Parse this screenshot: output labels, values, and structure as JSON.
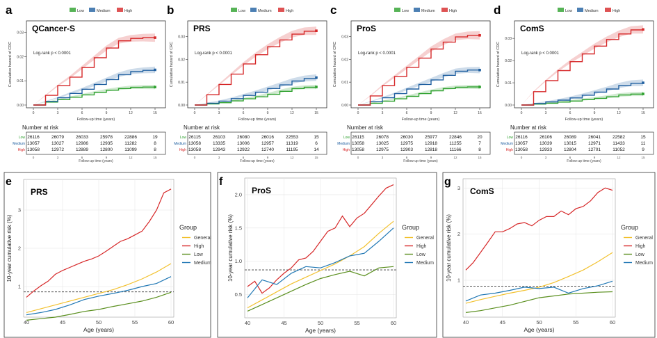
{
  "legend_top": {
    "low": "Low",
    "medium": "Medium",
    "high": "High"
  },
  "colors": {
    "low": "#2ca02c",
    "medium": "#1f5fa0",
    "high": "#d62728",
    "general": "#f2c12e",
    "green2": "#5a8f1e",
    "blue2": "#1f77b4",
    "ref": "#333333"
  },
  "risk_table": {
    "header": "Number at risk",
    "row_labels": [
      "Low",
      "Medium",
      "High"
    ],
    "xlabel": "Follow-up time (years)",
    "ticks": [
      "0",
      "3",
      "6",
      "9",
      "12",
      "15"
    ]
  },
  "chart_data": [
    {
      "panel": "a",
      "type": "line",
      "title": "QCancer-S",
      "annotation": "Log-rank  p < 0.0001",
      "xlabel": "Follow-up time (years)",
      "ylabel": "Cumulative hazard of CRC",
      "xticks": [
        0,
        3,
        6,
        9,
        12,
        15
      ],
      "yticks": [
        0.0,
        0.01,
        0.02,
        0.03
      ],
      "ylim": [
        0,
        0.033
      ],
      "series": [
        {
          "name": "Low",
          "x": [
            0,
            1.5,
            3,
            4.5,
            6,
            7.5,
            9,
            10.5,
            12,
            13.5,
            15
          ],
          "y": [
            0,
            0.0012,
            0.0022,
            0.0032,
            0.0042,
            0.0052,
            0.0061,
            0.0068,
            0.0073,
            0.0074,
            0.0074
          ]
        },
        {
          "name": "Medium",
          "x": [
            0,
            1.5,
            3,
            4.5,
            6,
            7.5,
            9,
            10.5,
            12,
            13.5,
            15
          ],
          "y": [
            0,
            0.0015,
            0.003,
            0.0048,
            0.0065,
            0.0085,
            0.0105,
            0.0125,
            0.0138,
            0.0143,
            0.0145
          ]
        },
        {
          "name": "High",
          "x": [
            0,
            1.5,
            3,
            4.5,
            6,
            7.5,
            9,
            10.5,
            12,
            13.5,
            15
          ],
          "y": [
            0,
            0.004,
            0.008,
            0.0115,
            0.0155,
            0.0195,
            0.0235,
            0.0265,
            0.0275,
            0.0278,
            0.0278
          ]
        }
      ],
      "risk_table": [
        [
          26116,
          26079,
          26033,
          25978,
          22886,
          19
        ],
        [
          13057,
          13027,
          12986,
          12935,
          11282,
          8
        ],
        [
          13058,
          12972,
          12889,
          12800,
          11099,
          8
        ]
      ]
    },
    {
      "panel": "b",
      "type": "line",
      "title": "PRS",
      "annotation": "Log-rank  p < 0.0001",
      "xlabel": "Follow-up time (years)",
      "ylabel": "Cumulative hazard of CRC",
      "xticks": [
        0,
        3,
        6,
        9,
        12,
        15
      ],
      "yticks": [
        0.0,
        0.01,
        0.02,
        0.03
      ],
      "ylim": [
        0,
        0.035
      ],
      "series": [
        {
          "name": "Low",
          "x": [
            0,
            1.5,
            3,
            4.5,
            6,
            7.5,
            9,
            10.5,
            12,
            13.5,
            15
          ],
          "y": [
            0,
            0.0005,
            0.001,
            0.0018,
            0.0027,
            0.0036,
            0.0047,
            0.006,
            0.0072,
            0.0078,
            0.0079
          ]
        },
        {
          "name": "Medium",
          "x": [
            0,
            1.5,
            3,
            4.5,
            6,
            7.5,
            9,
            10.5,
            12,
            13.5,
            15
          ],
          "y": [
            0,
            0.0008,
            0.0017,
            0.0028,
            0.0042,
            0.0056,
            0.0072,
            0.0088,
            0.0105,
            0.0116,
            0.012
          ]
        },
        {
          "name": "High",
          "x": [
            0,
            1.5,
            3,
            4.5,
            6,
            7.5,
            9,
            10.5,
            12,
            13.5,
            15
          ],
          "y": [
            0,
            0.0045,
            0.009,
            0.0135,
            0.018,
            0.022,
            0.0255,
            0.0285,
            0.031,
            0.0323,
            0.0325
          ]
        }
      ],
      "risk_table": [
        [
          26115,
          26103,
          26080,
          26016,
          22553,
          15
        ],
        [
          13058,
          13335,
          13006,
          12957,
          11319,
          6
        ],
        [
          13058,
          12943,
          12922,
          12740,
          11195,
          14
        ]
      ]
    },
    {
      "panel": "c",
      "type": "line",
      "title": "ProS",
      "annotation": "Log-rank  p < 0.0001",
      "xlabel": "Follow-up time (years)",
      "ylabel": "Cumulative hazard of CRC",
      "xticks": [
        0,
        3,
        6,
        9,
        12,
        15
      ],
      "yticks": [
        0.0,
        0.01,
        0.02,
        0.03
      ],
      "ylim": [
        0,
        0.035
      ],
      "series": [
        {
          "name": "Low",
          "x": [
            0,
            1.5,
            3,
            4.5,
            6,
            7.5,
            9,
            10.5,
            12,
            13.5,
            15
          ],
          "y": [
            0,
            0.0008,
            0.0017,
            0.0027,
            0.0038,
            0.005,
            0.0062,
            0.0072,
            0.0078,
            0.0079,
            0.0079
          ]
        },
        {
          "name": "Medium",
          "x": [
            0,
            1.5,
            3,
            4.5,
            6,
            7.5,
            9,
            10.5,
            12,
            13.5,
            15
          ],
          "y": [
            0,
            0.0015,
            0.0032,
            0.005,
            0.007,
            0.009,
            0.011,
            0.013,
            0.0148,
            0.0153,
            0.0153
          ]
        },
        {
          "name": "High",
          "x": [
            0,
            1.5,
            3,
            4.5,
            6,
            7.5,
            9,
            10.5,
            12,
            13.5,
            15
          ],
          "y": [
            0,
            0.004,
            0.0085,
            0.0125,
            0.0165,
            0.0205,
            0.0245,
            0.0275,
            0.0298,
            0.0305,
            0.0305
          ]
        }
      ],
      "risk_table": [
        [
          26115,
          26078,
          26030,
          25977,
          22846,
          20
        ],
        [
          13058,
          13025,
          12975,
          12918,
          11255,
          7
        ],
        [
          13058,
          12975,
          12903,
          12818,
          11166,
          8
        ]
      ]
    },
    {
      "panel": "d",
      "type": "line",
      "title": "ComS",
      "annotation": "Log-rank  p < 0.0001",
      "xlabel": "Follow-up time (years)",
      "ylabel": "Cumulative hazard of CRC",
      "xticks": [
        0,
        3,
        6,
        9,
        12,
        15
      ],
      "yticks": [
        0.0,
        0.01,
        0.02,
        0.03
      ],
      "ylim": [
        0,
        0.036
      ],
      "series": [
        {
          "name": "Low",
          "x": [
            0,
            1.5,
            3,
            4.5,
            6,
            7.5,
            9,
            10.5,
            12,
            13.5,
            15
          ],
          "y": [
            0,
            0.0004,
            0.0008,
            0.0013,
            0.0018,
            0.0024,
            0.003,
            0.0037,
            0.0045,
            0.0049,
            0.005
          ]
        },
        {
          "name": "Medium",
          "x": [
            0,
            1.5,
            3,
            4.5,
            6,
            7.5,
            9,
            10.5,
            12,
            13.5,
            15
          ],
          "y": [
            0,
            0.0007,
            0.0014,
            0.0022,
            0.0032,
            0.0044,
            0.0058,
            0.0072,
            0.0088,
            0.0098,
            0.01
          ]
        },
        {
          "name": "High",
          "x": [
            0,
            1.5,
            3,
            4.5,
            6,
            7.5,
            9,
            10.5,
            12,
            13.5,
            15
          ],
          "y": [
            0,
            0.006,
            0.011,
            0.0155,
            0.0195,
            0.023,
            0.0265,
            0.0295,
            0.032,
            0.0338,
            0.034
          ]
        }
      ],
      "risk_table": [
        [
          26116,
          26106,
          26089,
          26041,
          22582,
          15
        ],
        [
          13057,
          13039,
          13015,
          12971,
          11433,
          11
        ],
        [
          13058,
          12933,
          12804,
          12701,
          11052,
          9
        ]
      ]
    },
    {
      "panel": "e",
      "type": "line",
      "title": "PRS",
      "xlabel": "Age (years)",
      "ylabel": "10-year cumulative risk (%)",
      "xticks": [
        40,
        45,
        50,
        55,
        60
      ],
      "yticks": [
        1,
        2,
        3
      ],
      "ylim": [
        0.2,
        3.8
      ],
      "ref_line": 0.86,
      "legend_title": "Group",
      "series": [
        {
          "name": "General",
          "x": [
            40,
            42,
            44,
            46,
            48,
            50,
            52,
            54,
            56,
            58,
            60
          ],
          "y": [
            0.32,
            0.42,
            0.52,
            0.62,
            0.72,
            0.82,
            0.92,
            1.05,
            1.2,
            1.38,
            1.6
          ]
        },
        {
          "name": "High",
          "x": [
            40,
            41,
            42,
            43,
            44,
            45,
            46,
            47,
            48,
            49,
            50,
            51,
            52,
            53,
            54,
            55,
            56,
            57,
            58,
            59,
            60
          ],
          "y": [
            0.72,
            0.88,
            1.02,
            1.14,
            1.32,
            1.42,
            1.5,
            1.58,
            1.66,
            1.72,
            1.8,
            1.92,
            2.05,
            2.18,
            2.25,
            2.35,
            2.45,
            2.7,
            3.0,
            3.45,
            3.55
          ]
        },
        {
          "name": "Low",
          "x": [
            40,
            42,
            44,
            46,
            48,
            50,
            52,
            54,
            56,
            58,
            60
          ],
          "y": [
            0.12,
            0.16,
            0.2,
            0.27,
            0.35,
            0.4,
            0.48,
            0.55,
            0.62,
            0.72,
            0.85
          ]
        },
        {
          "name": "Medium",
          "x": [
            40,
            42,
            44,
            46,
            48,
            50,
            52,
            54,
            56,
            58,
            60
          ],
          "y": [
            0.26,
            0.32,
            0.4,
            0.52,
            0.66,
            0.75,
            0.82,
            0.9,
            1.0,
            1.08,
            1.26
          ]
        }
      ]
    },
    {
      "panel": "f",
      "type": "line",
      "title": "ProS",
      "xlabel": "Age (years)",
      "ylabel": "10-year cumulative risk (%)",
      "xticks": [
        40,
        45,
        50,
        55,
        60
      ],
      "yticks": [
        0.5,
        1.0,
        1.5,
        2.0
      ],
      "ylim": [
        0.15,
        2.25
      ],
      "ref_line": 0.87,
      "legend_title": "Group",
      "series": [
        {
          "name": "General",
          "x": [
            40,
            42,
            44,
            46,
            48,
            50,
            52,
            54,
            56,
            58,
            60
          ],
          "y": [
            0.3,
            0.42,
            0.54,
            0.66,
            0.76,
            0.86,
            0.96,
            1.08,
            1.22,
            1.42,
            1.6
          ]
        },
        {
          "name": "High",
          "x": [
            40,
            41,
            42,
            43,
            44,
            45,
            46,
            47,
            48,
            49,
            50,
            51,
            52,
            53,
            54,
            55,
            56,
            57,
            58,
            59,
            60
          ],
          "y": [
            0.62,
            0.7,
            0.52,
            0.6,
            0.72,
            0.82,
            0.9,
            1.02,
            1.05,
            1.15,
            1.3,
            1.45,
            1.5,
            1.68,
            1.52,
            1.65,
            1.72,
            1.85,
            1.98,
            2.1,
            2.15
          ]
        },
        {
          "name": "Low",
          "x": [
            40,
            42,
            44,
            46,
            48,
            50,
            52,
            54,
            56,
            58,
            60
          ],
          "y": [
            0.25,
            0.35,
            0.45,
            0.55,
            0.65,
            0.74,
            0.8,
            0.85,
            0.78,
            0.9,
            0.92
          ]
        },
        {
          "name": "Medium",
          "x": [
            40,
            42,
            44,
            46,
            48,
            50,
            52,
            54,
            56,
            58,
            60
          ],
          "y": [
            0.45,
            0.72,
            0.65,
            0.82,
            0.92,
            0.9,
            0.98,
            1.08,
            1.12,
            1.3,
            1.5
          ]
        }
      ]
    },
    {
      "panel": "g",
      "type": "line",
      "title": "ComS",
      "xlabel": "Age (years)",
      "ylabel": "10-year cumulative risk (%)",
      "xticks": [
        40,
        45,
        50,
        55,
        60
      ],
      "yticks": [
        1,
        2,
        3
      ],
      "ylim": [
        0.2,
        3.2
      ],
      "ref_line": 0.87,
      "legend_title": "Group",
      "series": [
        {
          "name": "General",
          "x": [
            40,
            42,
            44,
            46,
            48,
            50,
            52,
            54,
            56,
            58,
            60
          ],
          "y": [
            0.5,
            0.58,
            0.65,
            0.72,
            0.78,
            0.85,
            0.95,
            1.08,
            1.22,
            1.4,
            1.6
          ]
        },
        {
          "name": "High",
          "x": [
            40,
            41,
            42,
            43,
            44,
            45,
            46,
            47,
            48,
            49,
            50,
            51,
            52,
            53,
            54,
            55,
            56,
            57,
            58,
            59,
            60
          ],
          "y": [
            1.22,
            1.38,
            1.6,
            1.82,
            2.05,
            2.05,
            2.12,
            2.22,
            2.25,
            2.18,
            2.3,
            2.38,
            2.38,
            2.5,
            2.42,
            2.55,
            2.6,
            2.72,
            2.9,
            3.0,
            2.95
          ]
        },
        {
          "name": "Low",
          "x": [
            40,
            42,
            44,
            46,
            48,
            50,
            52,
            54,
            56,
            58,
            60
          ],
          "y": [
            0.3,
            0.34,
            0.4,
            0.46,
            0.54,
            0.62,
            0.66,
            0.7,
            0.72,
            0.74,
            0.75
          ]
        },
        {
          "name": "Medium",
          "x": [
            40,
            42,
            44,
            46,
            48,
            50,
            52,
            54,
            56,
            58,
            60
          ],
          "y": [
            0.55,
            0.68,
            0.72,
            0.78,
            0.85,
            0.82,
            0.85,
            0.72,
            0.82,
            0.88,
            0.98
          ]
        }
      ]
    }
  ]
}
